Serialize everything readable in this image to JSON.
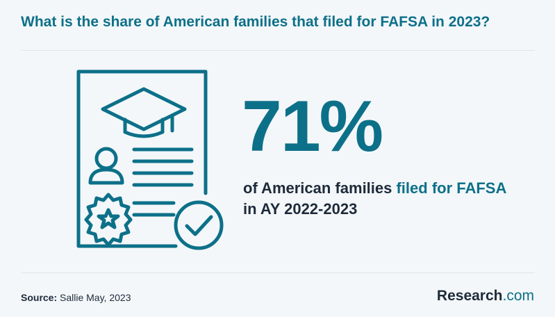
{
  "header": {
    "title": "What is the share of American families that filed for FAFSA in 2023?"
  },
  "stat": {
    "value": "71%",
    "description_part1": "of American families ",
    "description_accent": "filed for FAFSA",
    "description_part2": " in AY 2022-2023"
  },
  "footer": {
    "source_label": "Source:",
    "source_text": " Sallie May, 2023",
    "brand_main": "Research",
    "brand_suffix": ".com"
  },
  "colors": {
    "accent": "#0d7089",
    "text_dark": "#1d2a3a",
    "background": "#f3f7f9"
  },
  "icons": {
    "illustration": "diploma-certificate-with-graduation-cap-and-checkmark"
  }
}
